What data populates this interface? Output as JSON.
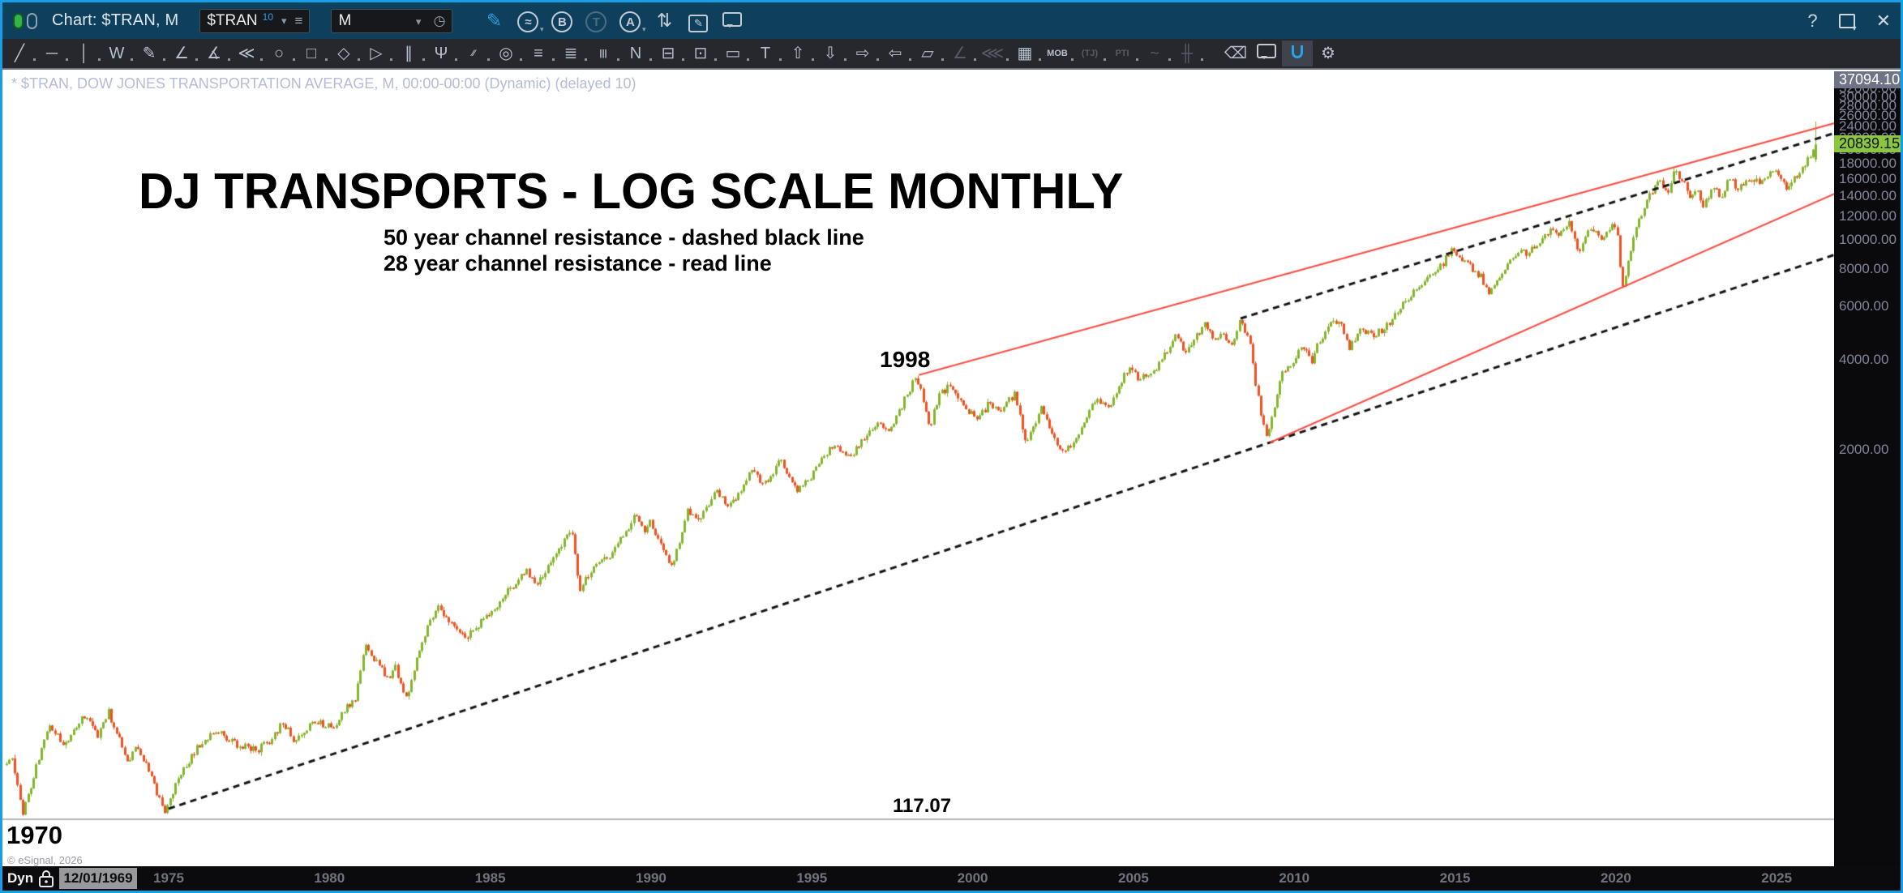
{
  "titlebar": {
    "title": "Chart: $TRAN, M",
    "symbol_input": {
      "value": "$TRAN",
      "badge": "10",
      "chevron": "▾",
      "menu_glyph": "≡"
    },
    "interval_input": {
      "value": "M",
      "chevron": "▾",
      "clock_glyph": "◷"
    },
    "icons": {
      "pencil": "✎",
      "wave_circle": "≈",
      "b_circle": "B",
      "t_circle": "T",
      "a_circle": "A",
      "swap_arrows": "⇅",
      "note_pencil": "✎"
    },
    "right": {
      "help": "?",
      "close": "✕"
    }
  },
  "toolbar": {
    "tools": [
      {
        "name": "trend-line",
        "glyph": "╱"
      },
      {
        "name": "horizontal-line",
        "glyph": "─"
      },
      {
        "name": "vertical-line",
        "glyph": "│"
      },
      {
        "name": "zigzag",
        "glyph": "W"
      },
      {
        "name": "freehand-pencil",
        "glyph": "✎"
      },
      {
        "name": "trend-fan",
        "glyph": "∠"
      },
      {
        "name": "ray-lines",
        "glyph": "∡"
      },
      {
        "name": "fan-burst",
        "glyph": "≪"
      },
      {
        "name": "ellipse",
        "glyph": "○"
      },
      {
        "name": "rectangle",
        "glyph": "□"
      },
      {
        "name": "diamond",
        "glyph": "◇"
      },
      {
        "name": "triangle",
        "glyph": "▷"
      },
      {
        "name": "parallel-slant-lines",
        "glyph": "∥"
      },
      {
        "name": "pitchfork",
        "glyph": "Ψ"
      },
      {
        "name": "channel",
        "glyph": "⁄⁄",
        "text": true
      },
      {
        "name": "fib-circles",
        "glyph": "◎"
      },
      {
        "name": "fib-retracement",
        "glyph": "≡"
      },
      {
        "name": "fib-extension",
        "glyph": "≣"
      },
      {
        "name": "fib-time-zones",
        "glyph": "|||",
        "text": true
      },
      {
        "name": "zigzag-labeled",
        "glyph": "N"
      },
      {
        "name": "callout-box",
        "glyph": "⊟"
      },
      {
        "name": "note-box",
        "glyph": "⊡"
      },
      {
        "name": "price-label",
        "glyph": "▭"
      },
      {
        "name": "text-tool",
        "glyph": "T"
      },
      {
        "name": "arrow-up",
        "glyph": "⇧"
      },
      {
        "name": "arrow-down",
        "glyph": "⇩"
      },
      {
        "name": "arrow-right",
        "glyph": "⇨"
      },
      {
        "name": "arrow-left",
        "glyph": "⇦"
      },
      {
        "name": "parallelogram",
        "glyph": "▱"
      },
      {
        "name": "gann-fan",
        "glyph": "∠",
        "dim": true
      },
      {
        "name": "ray-fan-left",
        "glyph": "⋘",
        "dim": true
      },
      {
        "name": "grid-tool",
        "glyph": "▦"
      },
      {
        "name": "mob-study",
        "glyph": "MOB",
        "text": true
      },
      {
        "name": "tj-study",
        "glyph": "(TJ)",
        "text": true,
        "dim": true
      },
      {
        "name": "pti-study",
        "glyph": "PTI",
        "text": true,
        "dim": true
      },
      {
        "name": "elliott-wave",
        "glyph": "~",
        "dim": true
      },
      {
        "name": "time-cycle-marks",
        "glyph": "╫",
        "dim": true
      }
    ],
    "right_tools": [
      {
        "name": "eraser",
        "glyph": "⌫"
      },
      {
        "name": "comment-bubble",
        "glyph": "",
        "bubble": true
      },
      {
        "name": "magnet",
        "glyph": "",
        "magnet": true,
        "active": true
      },
      {
        "name": "cursor-settings",
        "glyph": "⚙"
      }
    ]
  },
  "chart": {
    "header": "* $TRAN, DOW JONES TRANSPORTATION AVERAGE, M, 00:00-00:00 (Dynamic) (delayed 10)",
    "title": "DJ TRANSPORTS - LOG SCALE MONTHLY",
    "subtitle1": "50 year channel resistance - dashed black line",
    "subtitle2": "28 year channel resistance - read line",
    "label_1998": "1998",
    "label_1970": "1970",
    "label_117": "117.07",
    "copyright": "© eSignal, 2026"
  },
  "y_axis": {
    "cursor_label": "37094.10",
    "last_price_label": "20839.15",
    "ticks": [
      2000,
      4000,
      6000,
      8000,
      10000,
      12000,
      14000,
      16000,
      18000,
      20000,
      22000,
      24000,
      26000,
      28000,
      30000,
      32000,
      34000,
      36000
    ]
  },
  "x_axis": {
    "ticks": [
      1975,
      1980,
      1985,
      1990,
      1995,
      2000,
      2005,
      2010,
      2015,
      2020,
      2025
    ]
  },
  "statusbar": {
    "mode": "Dyn",
    "date": "12/01/1969"
  },
  "chart_data": {
    "type": "candlestick",
    "symbol": "$TRAN",
    "description": "DOW JONES TRANSPORTATION AVERAGE",
    "interval": "monthly",
    "y_scale": "log",
    "last_price": 20839.15,
    "window_high_label": 37094.1,
    "horizontal_level": 117.07,
    "x_start_year": 1969.96,
    "x_end_year": 2026.3,
    "colors": {
      "up": "#86b42c",
      "down": "#f05321",
      "red_line": "#fb4d42",
      "dashed_line": "#141414",
      "level_line": "#9aa0a8"
    },
    "trend_lines": [
      {
        "name": "50yr-channel-lower",
        "style": "dashed",
        "color": "#141414",
        "points": [
          [
            1975.0,
            127
          ],
          [
            2026.88,
            9000
          ]
        ]
      },
      {
        "name": "50yr-channel-upper",
        "style": "dashed",
        "color": "#141414",
        "points": [
          [
            2008.33,
            5480
          ],
          [
            2026.88,
            22900
          ]
        ]
      },
      {
        "name": "28yr-channel-upper",
        "style": "solid",
        "color": "#fb4d42",
        "points": [
          [
            1998.33,
            3550
          ],
          [
            2026.88,
            24700
          ]
        ]
      },
      {
        "name": "28yr-channel-lower",
        "style": "solid",
        "color": "#fb4d42",
        "points": [
          [
            2009.25,
            2115
          ],
          [
            2026.88,
            14400
          ]
        ]
      }
    ],
    "price_path_anchors": [
      [
        1969.96,
        178
      ],
      [
        1970.2,
        190
      ],
      [
        1970.55,
        122
      ],
      [
        1971.0,
        180
      ],
      [
        1971.4,
        243
      ],
      [
        1971.8,
        205
      ],
      [
        1972.4,
        262
      ],
      [
        1972.9,
        222
      ],
      [
        1973.2,
        268
      ],
      [
        1973.8,
        182
      ],
      [
        1974.1,
        210
      ],
      [
        1974.95,
        125
      ],
      [
        1975.5,
        170
      ],
      [
        1976.0,
        205
      ],
      [
        1976.5,
        232
      ],
      [
        1977.2,
        208
      ],
      [
        1977.8,
        199
      ],
      [
        1978.3,
        215
      ],
      [
        1978.6,
        250
      ],
      [
        1979.0,
        212
      ],
      [
        1979.6,
        252
      ],
      [
        1980.2,
        235
      ],
      [
        1980.4,
        260
      ],
      [
        1980.9,
        300
      ],
      [
        1981.2,
        447
      ],
      [
        1981.9,
        340
      ],
      [
        1982.1,
        380
      ],
      [
        1982.5,
        292
      ],
      [
        1982.9,
        448
      ],
      [
        1983.4,
        600
      ],
      [
        1984.3,
        470
      ],
      [
        1984.7,
        520
      ],
      [
        1985.0,
        560
      ],
      [
        1985.5,
        650
      ],
      [
        1986.2,
        790
      ],
      [
        1986.5,
        720
      ],
      [
        1987.0,
        850
      ],
      [
        1987.6,
        1090
      ],
      [
        1987.85,
        680
      ],
      [
        1988.3,
        820
      ],
      [
        1988.8,
        890
      ],
      [
        1989.6,
        1210
      ],
      [
        1989.9,
        1080
      ],
      [
        1990.0,
        1170
      ],
      [
        1990.75,
        810
      ],
      [
        1991.2,
        1260
      ],
      [
        1991.6,
        1160
      ],
      [
        1992.1,
        1450
      ],
      [
        1992.5,
        1280
      ],
      [
        1993.2,
        1690
      ],
      [
        1993.6,
        1540
      ],
      [
        1994.1,
        1840
      ],
      [
        1994.6,
        1450
      ],
      [
        1995.0,
        1600
      ],
      [
        1995.7,
        2070
      ],
      [
        1996.3,
        1900
      ],
      [
        1996.8,
        2260
      ],
      [
        1997.2,
        2430
      ],
      [
        1997.5,
        2320
      ],
      [
        1998.33,
        3550
      ],
      [
        1998.75,
        2380
      ],
      [
        1999.0,
        3000
      ],
      [
        1999.4,
        3320
      ],
      [
        1999.9,
        2760
      ],
      [
        2000.2,
        2480
      ],
      [
        2000.6,
        2880
      ],
      [
        2000.9,
        2660
      ],
      [
        2001.4,
        3080
      ],
      [
        2001.75,
        2060
      ],
      [
        2002.2,
        2800
      ],
      [
        2002.78,
        2010
      ],
      [
        2003.2,
        2070
      ],
      [
        2003.9,
        2940
      ],
      [
        2004.3,
        2780
      ],
      [
        2004.9,
        3700
      ],
      [
        2005.3,
        3430
      ],
      [
        2005.8,
        3740
      ],
      [
        2006.4,
        4850
      ],
      [
        2006.7,
        4230
      ],
      [
        2007.3,
        5250
      ],
      [
        2007.6,
        4650
      ],
      [
        2007.9,
        4850
      ],
      [
        2008.1,
        4330
      ],
      [
        2008.4,
        5480
      ],
      [
        2008.7,
        4540
      ],
      [
        2008.9,
        3220
      ],
      [
        2009.2,
        2160
      ],
      [
        2009.7,
        3650
      ],
      [
        2010.0,
        3900
      ],
      [
        2010.3,
        4520
      ],
      [
        2010.6,
        3910
      ],
      [
        2010.9,
        4720
      ],
      [
        2011.3,
        5350
      ],
      [
        2011.5,
        5480
      ],
      [
        2011.8,
        4290
      ],
      [
        2012.1,
        5150
      ],
      [
        2012.5,
        4840
      ],
      [
        2012.9,
        5080
      ],
      [
        2013.4,
        6050
      ],
      [
        2013.9,
        6960
      ],
      [
        2014.5,
        7800
      ],
      [
        2014.95,
        9200
      ],
      [
        2015.2,
        8680
      ],
      [
        2015.6,
        8050
      ],
      [
        2015.9,
        7480
      ],
      [
        2016.1,
        6700
      ],
      [
        2016.5,
        7680
      ],
      [
        2016.9,
        8950
      ],
      [
        2017.3,
        9100
      ],
      [
        2017.6,
        9450
      ],
      [
        2017.95,
        10600
      ],
      [
        2018.1,
        11100
      ],
      [
        2018.3,
        10200
      ],
      [
        2018.65,
        11570
      ],
      [
        2018.95,
        8950
      ],
      [
        2019.2,
        10550
      ],
      [
        2019.45,
        10800
      ],
      [
        2019.65,
        10000
      ],
      [
        2019.9,
        10900
      ],
      [
        2020.1,
        11300
      ],
      [
        2020.28,
        6850
      ],
      [
        2020.7,
        11200
      ],
      [
        2020.95,
        12700
      ],
      [
        2021.2,
        14600
      ],
      [
        2021.4,
        15900
      ],
      [
        2021.7,
        14300
      ],
      [
        2021.9,
        16900
      ],
      [
        2022.2,
        15500
      ],
      [
        2022.4,
        13800
      ],
      [
        2022.6,
        15150
      ],
      [
        2022.78,
        12750
      ],
      [
        2023.0,
        14300
      ],
      [
        2023.15,
        15300
      ],
      [
        2023.35,
        13700
      ],
      [
        2023.6,
        16300
      ],
      [
        2023.85,
        14750
      ],
      [
        2024.1,
        15800
      ],
      [
        2024.35,
        16100
      ],
      [
        2024.6,
        15300
      ],
      [
        2024.95,
        17300
      ],
      [
        2025.15,
        16300
      ],
      [
        2025.35,
        14900
      ],
      [
        2025.6,
        15900
      ],
      [
        2025.85,
        17200
      ],
      [
        2026.05,
        18600
      ],
      [
        2026.3,
        20500
      ]
    ],
    "last_candle": {
      "open": 18600,
      "high": 24850,
      "low": 18200,
      "close": 20839.15
    }
  }
}
